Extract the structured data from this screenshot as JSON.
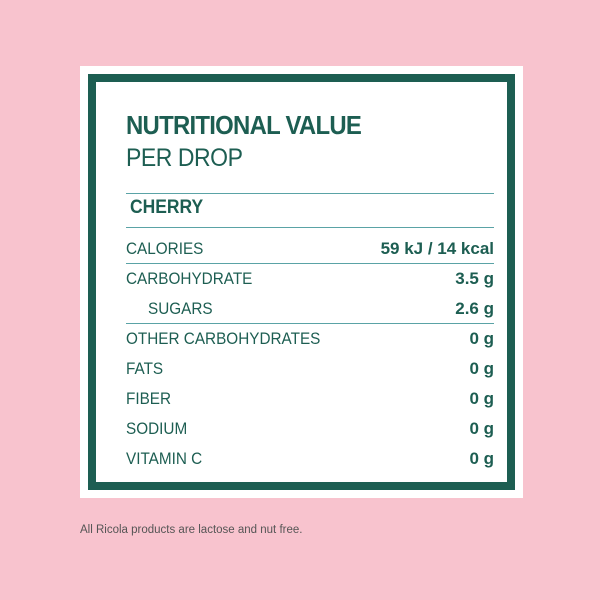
{
  "header": {
    "title": "NUTRITIONAL VALUE",
    "subtitle": "PER DROP"
  },
  "flavor": "CHERRY",
  "table": {
    "rows": [
      [
        "CALORIES",
        "59 kJ / 14 kcal"
      ],
      [
        "CARBOHYDRATE",
        "3.5 g"
      ],
      [
        "SUGARS",
        "2.6 g"
      ],
      [
        "OTHER CARBOHYDRATES",
        "0 g"
      ],
      [
        "FATS",
        "0 g"
      ],
      [
        "FIBER",
        "0 g"
      ],
      [
        "SODIUM",
        "0 g"
      ],
      [
        "VITAMIN C",
        "0 g"
      ]
    ]
  },
  "footnote": "All Ricola products are lactose and nut free."
}
